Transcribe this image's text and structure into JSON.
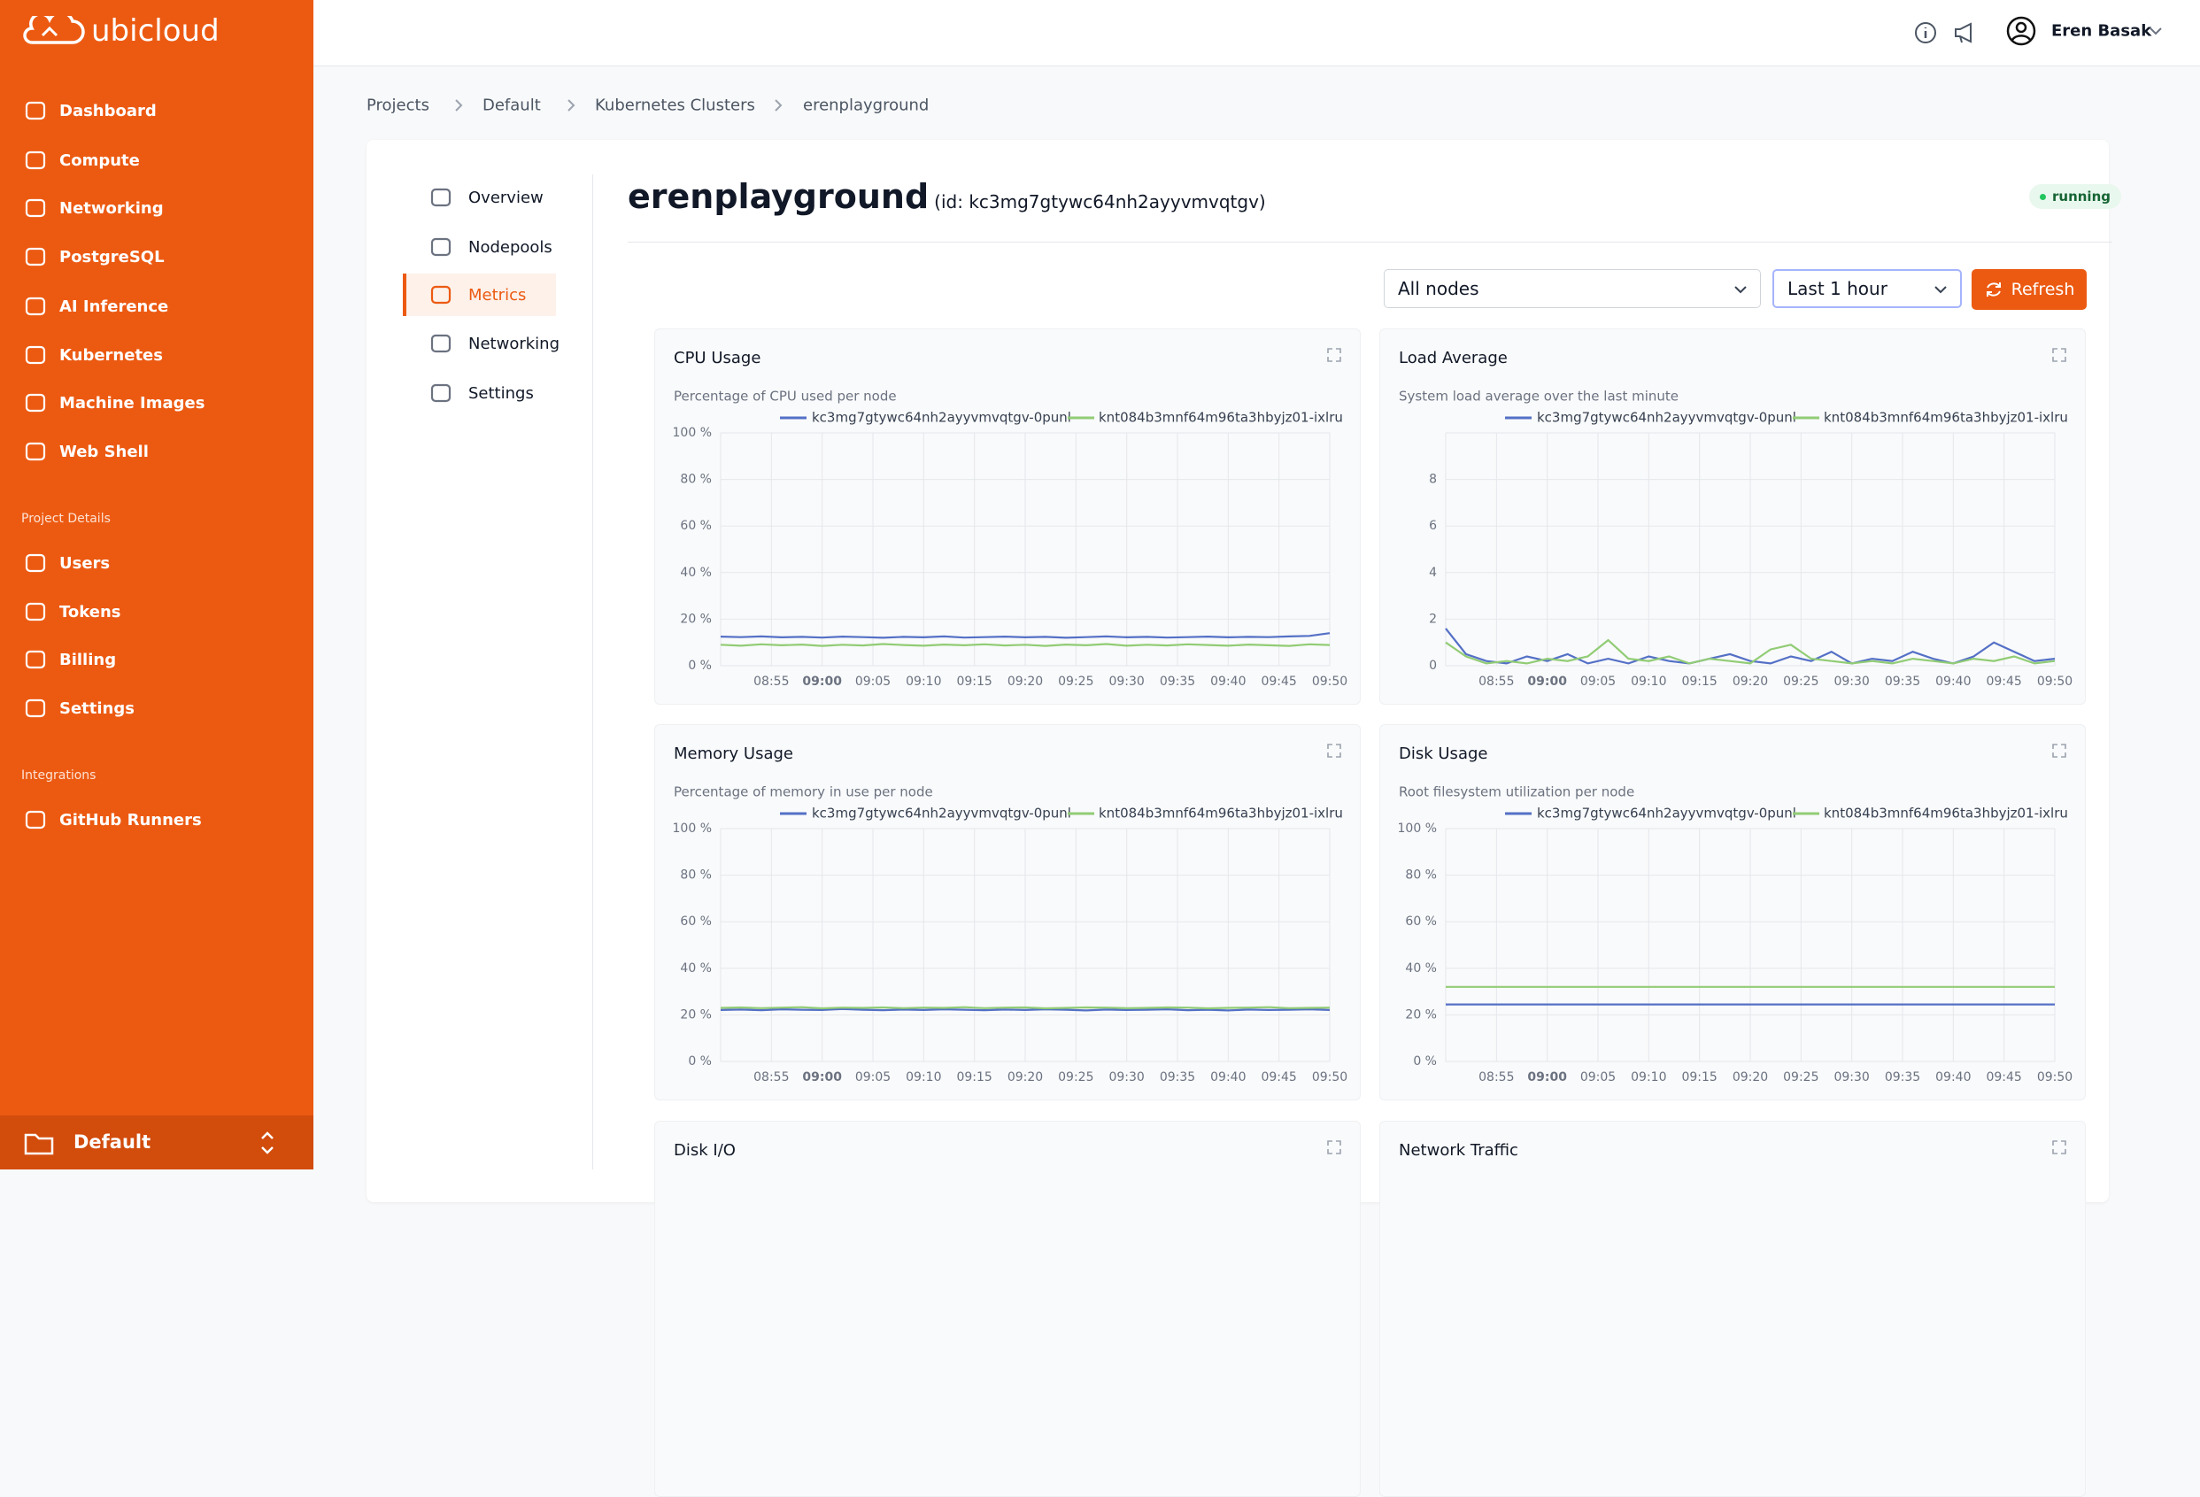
{
  "sidebar": {
    "brand": "ubicloud",
    "nav": [
      "Dashboard",
      "Compute",
      "Networking",
      "PostgreSQL",
      "AI Inference",
      "Kubernetes",
      "Machine Images",
      "Web Shell"
    ],
    "sections": [
      {
        "title": "Project Details",
        "items": [
          "Users",
          "Tokens",
          "Billing",
          "Settings"
        ]
      },
      {
        "title": "Integrations",
        "items": [
          "GitHub Runners"
        ]
      }
    ],
    "project": "Default"
  },
  "topbar": {
    "user": "Eren Basak"
  },
  "breadcrumbs": [
    "Projects",
    "Default",
    "Kubernetes Clusters",
    "erenplayground"
  ],
  "subnav": {
    "items": [
      "Overview",
      "Nodepools",
      "Metrics",
      "Networking",
      "Settings"
    ],
    "active": 2
  },
  "header": {
    "name": "erenplayground",
    "id": "(id: kc3mg7gtywc64nh2ayyvmvqtgv)",
    "status": "running"
  },
  "controls": {
    "node_filter": "All nodes",
    "range": "Last 1 hour",
    "refresh": "Refresh"
  },
  "chart_data": [
    {
      "type": "line",
      "title": "CPU Usage",
      "subtitle": "Percentage of CPU used per node",
      "xlim": [
        530,
        590
      ],
      "xticks": [
        {
          "value": 535,
          "label": "08:55"
        },
        {
          "value": 540,
          "label": "09:00"
        },
        {
          "value": 545,
          "label": "09:05"
        },
        {
          "value": 550,
          "label": "09:10"
        },
        {
          "value": 555,
          "label": "09:15"
        },
        {
          "value": 560,
          "label": "09:20"
        },
        {
          "value": 565,
          "label": "09:25"
        },
        {
          "value": 570,
          "label": "09:30"
        },
        {
          "value": 575,
          "label": "09:35"
        },
        {
          "value": 580,
          "label": "09:40"
        },
        {
          "value": 585,
          "label": "09:45"
        },
        {
          "value": 590,
          "label": "09:50"
        }
      ],
      "ylim": [
        0,
        100
      ],
      "yticks": [
        {
          "value": 0,
          "label": "0 %"
        },
        {
          "value": 20,
          "label": "20 %"
        },
        {
          "value": 40,
          "label": "40 %"
        },
        {
          "value": 60,
          "label": "60 %"
        },
        {
          "value": 80,
          "label": "80 %"
        },
        {
          "value": 100,
          "label": "100 %"
        }
      ],
      "grid": true,
      "x": [
        530,
        532,
        534,
        536,
        538,
        540,
        542,
        544,
        546,
        548,
        550,
        552,
        554,
        556,
        558,
        560,
        562,
        564,
        566,
        568,
        570,
        572,
        574,
        576,
        578,
        580,
        582,
        584,
        586,
        588,
        590
      ],
      "series": [
        {
          "name": "kc3mg7gtywc64nh2ayyvmvqtgv-0punl",
          "color": "#5470c6",
          "values": [
            12.5,
            12.3,
            12.6,
            12.2,
            12.4,
            12.1,
            12.5,
            12.3,
            12.0,
            12.4,
            12.2,
            12.6,
            12.1,
            12.3,
            12.5,
            12.2,
            12.4,
            12.0,
            12.3,
            12.6,
            12.2,
            12.4,
            12.1,
            12.3,
            12.5,
            12.2,
            12.4,
            12.3,
            12.6,
            12.8,
            14.0
          ]
        },
        {
          "name": "knt084b3mnf64m96ta3hbyjz01-ixlru",
          "color": "#91cc75",
          "values": [
            9.0,
            8.6,
            9.2,
            8.8,
            9.1,
            8.5,
            9.0,
            8.7,
            9.3,
            8.9,
            8.6,
            9.1,
            8.8,
            9.2,
            8.7,
            9.0,
            8.5,
            9.1,
            8.8,
            9.3,
            8.6,
            9.0,
            8.7,
            9.2,
            8.9,
            8.6,
            9.1,
            8.8,
            8.5,
            9.2,
            8.9
          ]
        }
      ]
    },
    {
      "type": "line",
      "title": "Load Average",
      "subtitle": "System load average over the last minute",
      "xlim": [
        530,
        590
      ],
      "xticks": [
        {
          "value": 535,
          "label": "08:55"
        },
        {
          "value": 540,
          "label": "09:00"
        },
        {
          "value": 545,
          "label": "09:05"
        },
        {
          "value": 550,
          "label": "09:10"
        },
        {
          "value": 555,
          "label": "09:15"
        },
        {
          "value": 560,
          "label": "09:20"
        },
        {
          "value": 565,
          "label": "09:25"
        },
        {
          "value": 570,
          "label": "09:30"
        },
        {
          "value": 575,
          "label": "09:35"
        },
        {
          "value": 580,
          "label": "09:40"
        },
        {
          "value": 585,
          "label": "09:45"
        },
        {
          "value": 590,
          "label": "09:50"
        }
      ],
      "ylim": [
        0,
        10
      ],
      "yticks": [
        0,
        2,
        4,
        6,
        8
      ],
      "grid": true,
      "x": [
        530,
        532,
        534,
        536,
        538,
        540,
        542,
        544,
        546,
        548,
        550,
        552,
        554,
        556,
        558,
        560,
        562,
        564,
        566,
        568,
        570,
        572,
        574,
        576,
        578,
        580,
        582,
        584,
        586,
        588,
        590
      ],
      "series": [
        {
          "name": "kc3mg7gtywc64nh2ayyvmvqtgv-0punl",
          "color": "#5470c6",
          "values": [
            1.6,
            0.5,
            0.2,
            0.1,
            0.4,
            0.2,
            0.5,
            0.1,
            0.3,
            0.1,
            0.4,
            0.2,
            0.1,
            0.3,
            0.5,
            0.2,
            0.1,
            0.4,
            0.2,
            0.6,
            0.1,
            0.3,
            0.2,
            0.6,
            0.3,
            0.1,
            0.4,
            1.0,
            0.6,
            0.2,
            0.3
          ]
        },
        {
          "name": "knt084b3mnf64m96ta3hbyjz01-ixlru",
          "color": "#91cc75",
          "values": [
            1.0,
            0.4,
            0.1,
            0.2,
            0.1,
            0.3,
            0.2,
            0.4,
            1.1,
            0.3,
            0.2,
            0.4,
            0.1,
            0.3,
            0.2,
            0.1,
            0.7,
            0.9,
            0.3,
            0.2,
            0.1,
            0.2,
            0.1,
            0.3,
            0.2,
            0.1,
            0.3,
            0.2,
            0.4,
            0.1,
            0.2
          ]
        }
      ]
    },
    {
      "type": "line",
      "title": "Memory Usage",
      "subtitle": "Percentage of memory in use per node",
      "xlim": [
        530,
        590
      ],
      "xticks": [
        {
          "value": 535,
          "label": "08:55"
        },
        {
          "value": 540,
          "label": "09:00"
        },
        {
          "value": 545,
          "label": "09:05"
        },
        {
          "value": 550,
          "label": "09:10"
        },
        {
          "value": 555,
          "label": "09:15"
        },
        {
          "value": 560,
          "label": "09:20"
        },
        {
          "value": 565,
          "label": "09:25"
        },
        {
          "value": 570,
          "label": "09:30"
        },
        {
          "value": 575,
          "label": "09:35"
        },
        {
          "value": 580,
          "label": "09:40"
        },
        {
          "value": 585,
          "label": "09:45"
        },
        {
          "value": 590,
          "label": "09:50"
        }
      ],
      "ylim": [
        0,
        100
      ],
      "yticks": [
        {
          "value": 0,
          "label": "0 %"
        },
        {
          "value": 20,
          "label": "20 %"
        },
        {
          "value": 40,
          "label": "40 %"
        },
        {
          "value": 60,
          "label": "60 %"
        },
        {
          "value": 80,
          "label": "80 %"
        },
        {
          "value": 100,
          "label": "100 %"
        }
      ],
      "grid": true,
      "x": [
        530,
        532,
        534,
        536,
        538,
        540,
        542,
        544,
        546,
        548,
        550,
        552,
        554,
        556,
        558,
        560,
        562,
        564,
        566,
        568,
        570,
        572,
        574,
        576,
        578,
        580,
        582,
        584,
        586,
        588,
        590
      ],
      "series": [
        {
          "name": "kc3mg7gtywc64nh2ayyvmvqtgv-0punl",
          "color": "#5470c6",
          "values": [
            22.1,
            22.3,
            22.0,
            22.4,
            22.2,
            22.1,
            22.5,
            22.2,
            22.0,
            22.3,
            22.1,
            22.4,
            22.2,
            22.0,
            22.3,
            22.1,
            22.4,
            22.2,
            21.9,
            22.3,
            22.1,
            22.2,
            22.4,
            22.0,
            22.2,
            21.9,
            22.3,
            22.1,
            22.2,
            22.4,
            22.1
          ]
        },
        {
          "name": "knt084b3mnf64m96ta3hbyjz01-ixlru",
          "color": "#91cc75",
          "values": [
            23.0,
            23.2,
            22.9,
            23.1,
            23.3,
            22.8,
            23.1,
            23.0,
            23.2,
            22.9,
            23.1,
            23.0,
            23.3,
            22.9,
            23.1,
            23.2,
            22.8,
            23.0,
            23.2,
            23.1,
            22.9,
            23.0,
            23.2,
            23.1,
            22.8,
            23.0,
            23.1,
            23.3,
            22.9,
            23.0,
            23.1
          ]
        }
      ]
    },
    {
      "type": "line",
      "title": "Disk Usage",
      "subtitle": "Root filesystem utilization per node",
      "xlim": [
        530,
        590
      ],
      "xticks": [
        {
          "value": 535,
          "label": "08:55"
        },
        {
          "value": 540,
          "label": "09:00"
        },
        {
          "value": 545,
          "label": "09:05"
        },
        {
          "value": 550,
          "label": "09:10"
        },
        {
          "value": 555,
          "label": "09:15"
        },
        {
          "value": 560,
          "label": "09:20"
        },
        {
          "value": 565,
          "label": "09:25"
        },
        {
          "value": 570,
          "label": "09:30"
        },
        {
          "value": 575,
          "label": "09:35"
        },
        {
          "value": 580,
          "label": "09:40"
        },
        {
          "value": 585,
          "label": "09:45"
        },
        {
          "value": 590,
          "label": "09:50"
        }
      ],
      "ylim": [
        0,
        100
      ],
      "yticks": [
        {
          "value": 0,
          "label": "0 %"
        },
        {
          "value": 20,
          "label": "20 %"
        },
        {
          "value": 40,
          "label": "40 %"
        },
        {
          "value": 60,
          "label": "60 %"
        },
        {
          "value": 80,
          "label": "80 %"
        },
        {
          "value": 100,
          "label": "100 %"
        }
      ],
      "grid": true,
      "x": [
        530,
        532,
        534,
        536,
        538,
        540,
        542,
        544,
        546,
        548,
        550,
        552,
        554,
        556,
        558,
        560,
        562,
        564,
        566,
        568,
        570,
        572,
        574,
        576,
        578,
        580,
        582,
        584,
        586,
        588,
        590
      ],
      "series": [
        {
          "name": "kc3mg7gtywc64nh2ayyvmvqtgv-0punl",
          "color": "#5470c6",
          "values": [
            24.5,
            24.5,
            24.5,
            24.5,
            24.5,
            24.5,
            24.5,
            24.5,
            24.5,
            24.5,
            24.5,
            24.5,
            24.5,
            24.5,
            24.5,
            24.5,
            24.5,
            24.5,
            24.5,
            24.5,
            24.5,
            24.5,
            24.5,
            24.5,
            24.5,
            24.5,
            24.5,
            24.5,
            24.5,
            24.5,
            24.5
          ]
        },
        {
          "name": "knt084b3mnf64m96ta3hbyjz01-ixlru",
          "color": "#91cc75",
          "values": [
            32,
            32,
            32,
            32,
            32,
            32,
            32,
            32,
            32,
            32,
            32,
            32,
            32,
            32,
            32,
            32,
            32,
            32,
            32,
            32,
            32,
            32,
            32,
            32,
            32,
            32,
            32,
            32,
            32,
            32,
            32
          ]
        }
      ]
    }
  ],
  "more_panels": [
    "Disk I/O",
    "Network Traffic"
  ]
}
